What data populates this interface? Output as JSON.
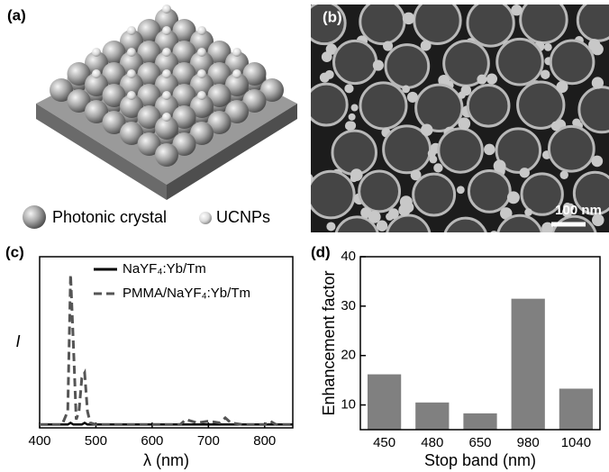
{
  "panel_labels": [
    "(a)",
    "(b)",
    "(c)",
    "(d)"
  ],
  "panel_a": {
    "legend": [
      "Photonic crystal",
      "UCNPs"
    ]
  },
  "panel_b": {
    "scale_bar": "100 nm"
  },
  "chart_data": [
    {
      "type": "line",
      "x_label": "λ (nm)",
      "y_label": "I",
      "x": [
        400,
        440,
        450,
        455,
        460,
        465,
        470,
        475,
        480,
        485,
        490,
        500,
        550,
        600,
        650,
        660,
        680,
        700,
        720,
        730,
        740,
        760,
        780,
        800,
        810,
        820,
        850
      ],
      "series": [
        {
          "name": "NaYF₄:Yb/Tm",
          "color": "#000000",
          "line_style": "solid",
          "values": [
            0.02,
            0.02,
            0.02,
            0.03,
            0.02,
            0.02,
            0.02,
            0.02,
            0.03,
            0.02,
            0.02,
            0.02,
            0.02,
            0.02,
            0.02,
            0.02,
            0.02,
            0.02,
            0.02,
            0.02,
            0.02,
            0.02,
            0.02,
            0.02,
            0.02,
            0.02,
            0.02
          ]
        },
        {
          "name": "PMMA/NaYF₄:Yb/Tm",
          "color": "#555555",
          "line_style": "dashed",
          "values": [
            0.02,
            0.02,
            0.1,
            0.92,
            0.5,
            0.05,
            0.1,
            0.3,
            0.33,
            0.1,
            0.03,
            0.02,
            0.02,
            0.02,
            0.02,
            0.05,
            0.03,
            0.04,
            0.03,
            0.06,
            0.03,
            0.02,
            0.02,
            0.02,
            0.04,
            0.02,
            0.02
          ]
        }
      ],
      "xlim": [
        400,
        850
      ],
      "xticks": [
        400,
        500,
        600,
        700,
        800
      ],
      "ylim": [
        0,
        1
      ]
    },
    {
      "type": "bar",
      "x_label": "Stop band (nm)",
      "y_label": "Enhancement factor",
      "categories": [
        "450",
        "480",
        "650",
        "980",
        "1040"
      ],
      "values": [
        16.2,
        10.5,
        8.3,
        31.5,
        13.3
      ],
      "color": "#808080",
      "ylim": [
        5,
        40
      ],
      "yticks": [
        10,
        20,
        30,
        40
      ]
    }
  ]
}
